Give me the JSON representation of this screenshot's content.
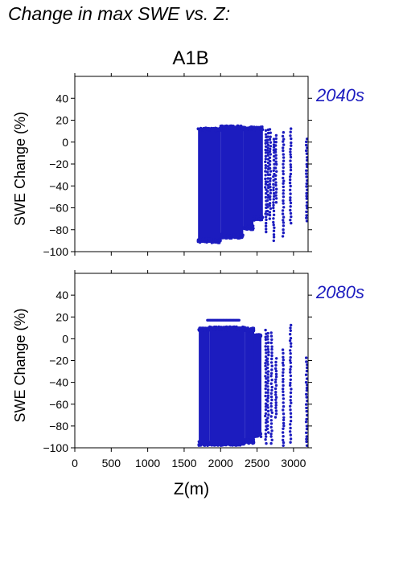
{
  "page_title": "Change in max SWE vs. Z:",
  "scenario": "A1B",
  "point_color": "#1c1cbf",
  "label_color": "#1c1cbf",
  "chart_data": [
    {
      "type": "scatter",
      "period": "2040s",
      "ylabel": "SWE Change (%)",
      "xlabel": "",
      "xlim": [
        0,
        3200
      ],
      "ylim": [
        -100,
        60
      ],
      "yticks": [
        40,
        20,
        0,
        -20,
        -40,
        -60,
        -80,
        -100
      ],
      "xticks": [
        0,
        500,
        1000,
        1500,
        2000,
        2500,
        3000
      ],
      "series": [
        {
          "dense_bands": [
            {
              "x": [
                1690,
                2000
              ],
              "y": [
                -92,
                13
              ]
            },
            {
              "x": [
                2000,
                2310
              ],
              "y": [
                -88,
                15
              ]
            },
            {
              "x": [
                2310,
                2450
              ],
              "y": [
                -80,
                14
              ]
            },
            {
              "x": [
                2450,
                2580
              ],
              "y": [
                -72,
                14
              ]
            }
          ],
          "strips": [
            {
              "x": 2620,
              "y": [
                -82,
                12
              ]
            },
            {
              "x": 2650,
              "y": [
                -66,
                12
              ]
            },
            {
              "x": 2680,
              "y": [
                -70,
                12
              ]
            },
            {
              "x": 2730,
              "y": [
                -90,
                3
              ]
            },
            {
              "x": 2760,
              "y": [
                -55,
                8
              ]
            },
            {
              "x": 2860,
              "y": [
                -86,
                10
              ]
            },
            {
              "x": 2960,
              "y": [
                -74,
                14
              ]
            },
            {
              "x": 3180,
              "y": [
                -72,
                3
              ]
            }
          ]
        }
      ]
    },
    {
      "type": "scatter",
      "period": "2080s",
      "ylabel": "SWE Change (%)",
      "xlabel": "Z(m)",
      "xlim": [
        0,
        3200
      ],
      "ylim": [
        -100,
        60
      ],
      "yticks": [
        40,
        20,
        0,
        -20,
        -40,
        -60,
        -80,
        -100
      ],
      "xticks": [
        0,
        500,
        1000,
        1500,
        2000,
        2500,
        3000
      ],
      "xticklabels": [
        "0",
        "500",
        "1000",
        "1500",
        "2000",
        "2500",
        "3000"
      ],
      "series": [
        {
          "dense_bands": [
            {
              "x": [
                1700,
                1850
              ],
              "y": [
                -98,
                10
              ]
            },
            {
              "x": [
                1850,
                2330
              ],
              "y": [
                -98,
                11
              ]
            },
            {
              "x": [
                2330,
                2460
              ],
              "y": [
                -96,
                10
              ]
            },
            {
              "x": [
                2460,
                2560
              ],
              "y": [
                -90,
                4
              ]
            }
          ],
          "top_row": {
            "x": [
              1820,
              2260
            ],
            "y": 17
          },
          "strips": [
            {
              "x": 2620,
              "y": [
                -96,
                8
              ]
            },
            {
              "x": 2650,
              "y": [
                -86,
                6
              ]
            },
            {
              "x": 2700,
              "y": [
                -96,
                8
              ]
            },
            {
              "x": 2760,
              "y": [
                -72,
                -15
              ]
            },
            {
              "x": 2860,
              "y": [
                -98,
                -10
              ]
            },
            {
              "x": 2960,
              "y": [
                -95,
                13
              ]
            },
            {
              "x": 3180,
              "y": [
                -98,
                -15
              ]
            }
          ]
        }
      ]
    }
  ]
}
